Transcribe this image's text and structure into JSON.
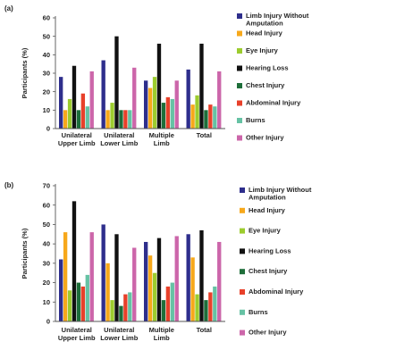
{
  "chart_data": [
    {
      "type": "bar",
      "panel_label": "(a)",
      "ylabel": "Participants (%)",
      "ylim": [
        0,
        60
      ],
      "yticks": [
        0,
        10,
        20,
        30,
        40,
        50,
        60
      ],
      "categories": [
        [
          "Unilateral",
          "Upper Limb"
        ],
        [
          "Unilateral",
          "Lower Limb"
        ],
        [
          "Multiple",
          "Limb"
        ],
        [
          "Total"
        ]
      ],
      "series": [
        {
          "name": [
            "Limb Injury Without",
            "Amputation"
          ],
          "values": [
            28,
            37,
            26,
            32
          ]
        },
        {
          "name": [
            "Head Injury"
          ],
          "values": [
            10,
            10,
            22,
            13
          ]
        },
        {
          "name": [
            "Eye Injury"
          ],
          "values": [
            16,
            14,
            28,
            18
          ]
        },
        {
          "name": [
            "Hearing Loss"
          ],
          "values": [
            34,
            50,
            46,
            46
          ]
        },
        {
          "name": [
            "Chest Injury"
          ],
          "values": [
            10,
            10,
            14,
            10
          ]
        },
        {
          "name": [
            "Abdominal Injury"
          ],
          "values": [
            19,
            10,
            17,
            13
          ]
        },
        {
          "name": [
            "Burns"
          ],
          "values": [
            12,
            10,
            16,
            12
          ]
        },
        {
          "name": [
            "Other Injury"
          ],
          "values": [
            31,
            33,
            26,
            31
          ]
        }
      ]
    },
    {
      "type": "bar",
      "panel_label": "(b)",
      "ylabel": "Participants (%)",
      "ylim": [
        0,
        70
      ],
      "yticks": [
        0,
        10,
        20,
        30,
        40,
        50,
        60,
        70
      ],
      "categories": [
        [
          "Unilateral",
          "Upper Limb"
        ],
        [
          "Unilateral",
          "Lower Limb"
        ],
        [
          "Multiple",
          "Limb"
        ],
        [
          "Total"
        ]
      ],
      "series": [
        {
          "name": [
            "Limb Injury Without",
            "Amputation"
          ],
          "values": [
            32,
            50,
            41,
            45
          ]
        },
        {
          "name": [
            "Head Injury"
          ],
          "values": [
            46,
            30,
            34,
            33
          ]
        },
        {
          "name": [
            "Eye Injury"
          ],
          "values": [
            16,
            11,
            25,
            14
          ]
        },
        {
          "name": [
            "Hearing Loss"
          ],
          "values": [
            62,
            45,
            43,
            47
          ]
        },
        {
          "name": [
            "Chest Injury"
          ],
          "values": [
            20,
            8,
            11,
            11
          ]
        },
        {
          "name": [
            "Abdominal Injury"
          ],
          "values": [
            18,
            14,
            18,
            15
          ]
        },
        {
          "name": [
            "Burns"
          ],
          "values": [
            24,
            15,
            20,
            18
          ]
        },
        {
          "name": [
            "Other Injury"
          ],
          "values": [
            46,
            38,
            44,
            41
          ]
        }
      ]
    }
  ],
  "colors": [
    "#2e2e8c",
    "#f7a81b",
    "#9ccc2e",
    "#111111",
    "#1e6e3a",
    "#e8402a",
    "#66c2a4",
    "#cc66aa"
  ]
}
